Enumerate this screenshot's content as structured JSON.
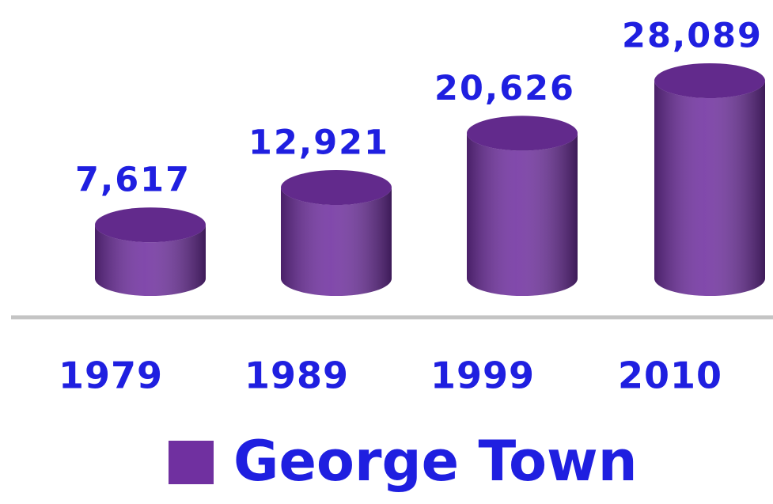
{
  "chart_data": {
    "type": "bar",
    "categories": [
      "1979",
      "1989",
      "1999",
      "2010"
    ],
    "series": [
      {
        "name": "George Town",
        "color": "#7030a0",
        "values": [
          7617,
          12921,
          20626,
          28089
        ],
        "value_labels": [
          "7,617",
          "12,921",
          "20,626",
          "28,089"
        ]
      }
    ]
  }
}
